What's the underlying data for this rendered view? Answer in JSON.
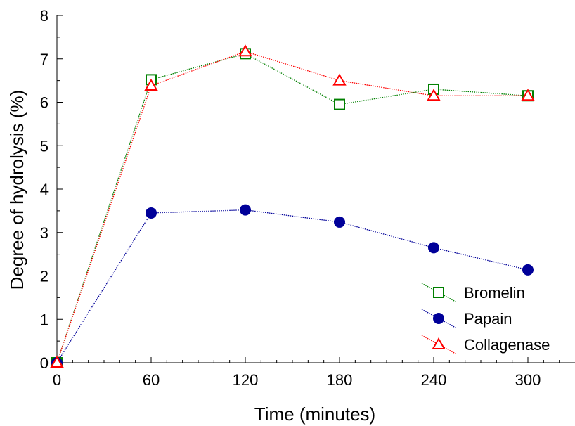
{
  "chart_data": {
    "type": "line",
    "title": "",
    "xlabel": "Time (minutes)",
    "ylabel": "Degree of hydrolysis (%)",
    "xlim": [
      0,
      330
    ],
    "ylim": [
      0,
      8
    ],
    "x": [
      0,
      60,
      120,
      180,
      240,
      300
    ],
    "xticks": [
      "0",
      "60",
      "120",
      "180",
      "240",
      "300"
    ],
    "yticks": [
      "0",
      "1",
      "2",
      "3",
      "4",
      "5",
      "6",
      "7",
      "8"
    ],
    "grid": false,
    "legend_position": "bottom-right",
    "series": [
      {
        "name": "Bromelin",
        "color": "#008000",
        "marker": "square",
        "values": [
          0,
          6.52,
          7.12,
          5.95,
          6.3,
          6.15
        ]
      },
      {
        "name": "Papain",
        "color": "#000099",
        "marker": "circle",
        "values": [
          0,
          3.45,
          3.52,
          3.24,
          2.65,
          2.14
        ]
      },
      {
        "name": "Collagenase",
        "color": "#ff0000",
        "marker": "triangle",
        "values": [
          0,
          6.38,
          7.17,
          6.5,
          6.15,
          6.15
        ]
      }
    ]
  }
}
